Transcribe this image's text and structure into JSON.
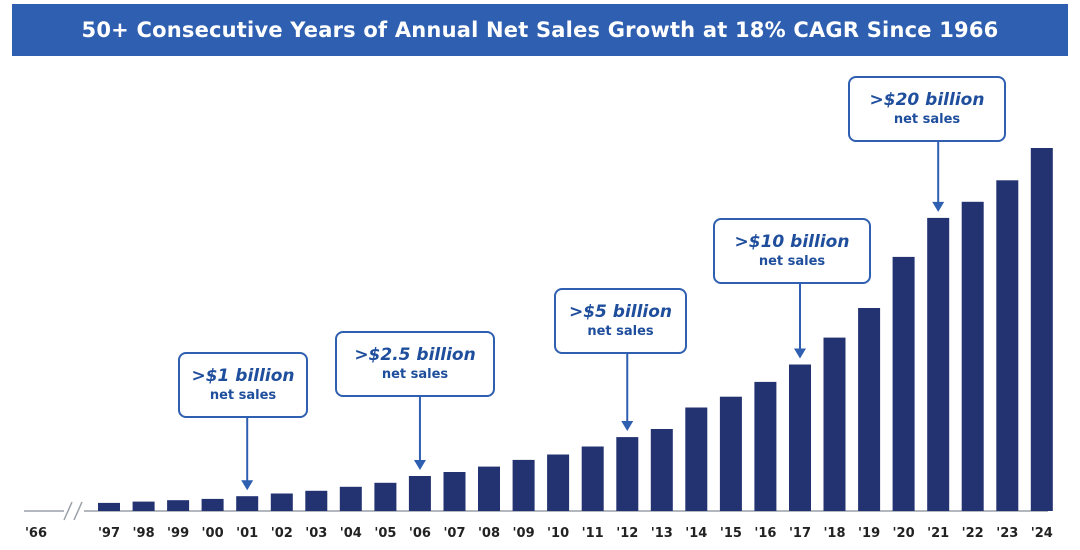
{
  "title": "50+ Consecutive Years of Annual Net Sales Growth at 18% CAGR Since 1966",
  "colors": {
    "banner": "#2f5fb0",
    "bar": "#233271",
    "callout_text": "#1f4e9c",
    "axis": "#9aa0a8"
  },
  "chart_data": {
    "type": "bar",
    "categories": [
      "'66",
      "'97",
      "'98",
      "'99",
      "'00",
      "'01",
      "'02",
      "'03",
      "'04",
      "'05",
      "'06",
      "'07",
      "'08",
      "'09",
      "'10",
      "'11",
      "'12",
      "'13",
      "'14",
      "'15",
      "'16",
      "'17",
      "'18",
      "'19",
      "'20",
      "'21",
      "'22",
      "'23",
      "'24"
    ],
    "values": [
      0,
      0.6,
      0.7,
      0.8,
      0.9,
      1.1,
      1.3,
      1.5,
      1.8,
      2.1,
      2.6,
      2.9,
      3.3,
      3.8,
      4.2,
      4.8,
      5.5,
      6.1,
      7.7,
      8.5,
      9.6,
      10.9,
      12.9,
      15.1,
      18.9,
      21.8,
      23.0,
      24.6,
      27.0
    ],
    "axis_break_after": "'66",
    "ylim": [
      0,
      28
    ],
    "grid": false,
    "xlabel": "",
    "ylabel": ""
  },
  "callouts": [
    {
      "main": ">$1 billion",
      "sub": "net sales",
      "target": "'01"
    },
    {
      "main": ">$2.5 billion",
      "sub": "net sales",
      "target": "'06"
    },
    {
      "main": ">$5 billion",
      "sub": "net sales",
      "target": "'12"
    },
    {
      "main": ">$10 billion",
      "sub": "net sales",
      "target": "'17"
    },
    {
      "main": ">$20 billion",
      "sub": "net sales",
      "target": "'21"
    }
  ]
}
